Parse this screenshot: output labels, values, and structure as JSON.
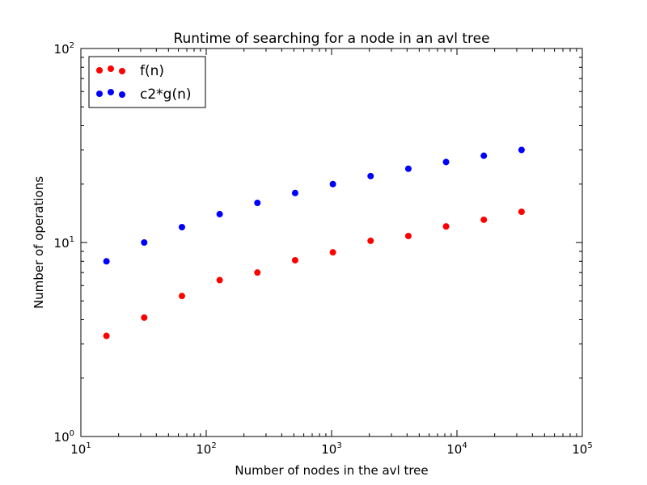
{
  "chart_data": {
    "type": "scatter",
    "title": "Runtime of searching for a node in an avl tree",
    "xlabel": "Number of nodes in the avl tree",
    "ylabel": "Number of operations",
    "xscale": "log",
    "yscale": "log",
    "xlim": [
      10,
      100000
    ],
    "ylim": [
      1,
      100
    ],
    "grid": false,
    "legend_position": "top-left",
    "x_ticks": [
      {
        "base": "10",
        "exp": "1",
        "value": 10
      },
      {
        "base": "10",
        "exp": "2",
        "value": 100
      },
      {
        "base": "10",
        "exp": "3",
        "value": 1000
      },
      {
        "base": "10",
        "exp": "4",
        "value": 10000
      },
      {
        "base": "10",
        "exp": "5",
        "value": 100000
      }
    ],
    "y_ticks": [
      {
        "base": "10",
        "exp": "0",
        "value": 1
      },
      {
        "base": "10",
        "exp": "1",
        "value": 10
      },
      {
        "base": "10",
        "exp": "2",
        "value": 100
      }
    ],
    "x": [
      16,
      32,
      64,
      128,
      256,
      512,
      1024,
      2048,
      4096,
      8192,
      16384,
      32768
    ],
    "series": [
      {
        "name": "f(n)",
        "color": "#ff0000",
        "values": [
          3.3,
          4.1,
          5.3,
          6.4,
          7.0,
          8.1,
          8.9,
          10.2,
          10.8,
          12.1,
          13.1,
          14.4
        ]
      },
      {
        "name": "c2*g(n)",
        "color": "#0000ff",
        "values": [
          8.0,
          10.0,
          12.0,
          14.0,
          16.0,
          18.0,
          20.0,
          22.0,
          24.0,
          26.0,
          28.0,
          30.0
        ]
      }
    ]
  }
}
